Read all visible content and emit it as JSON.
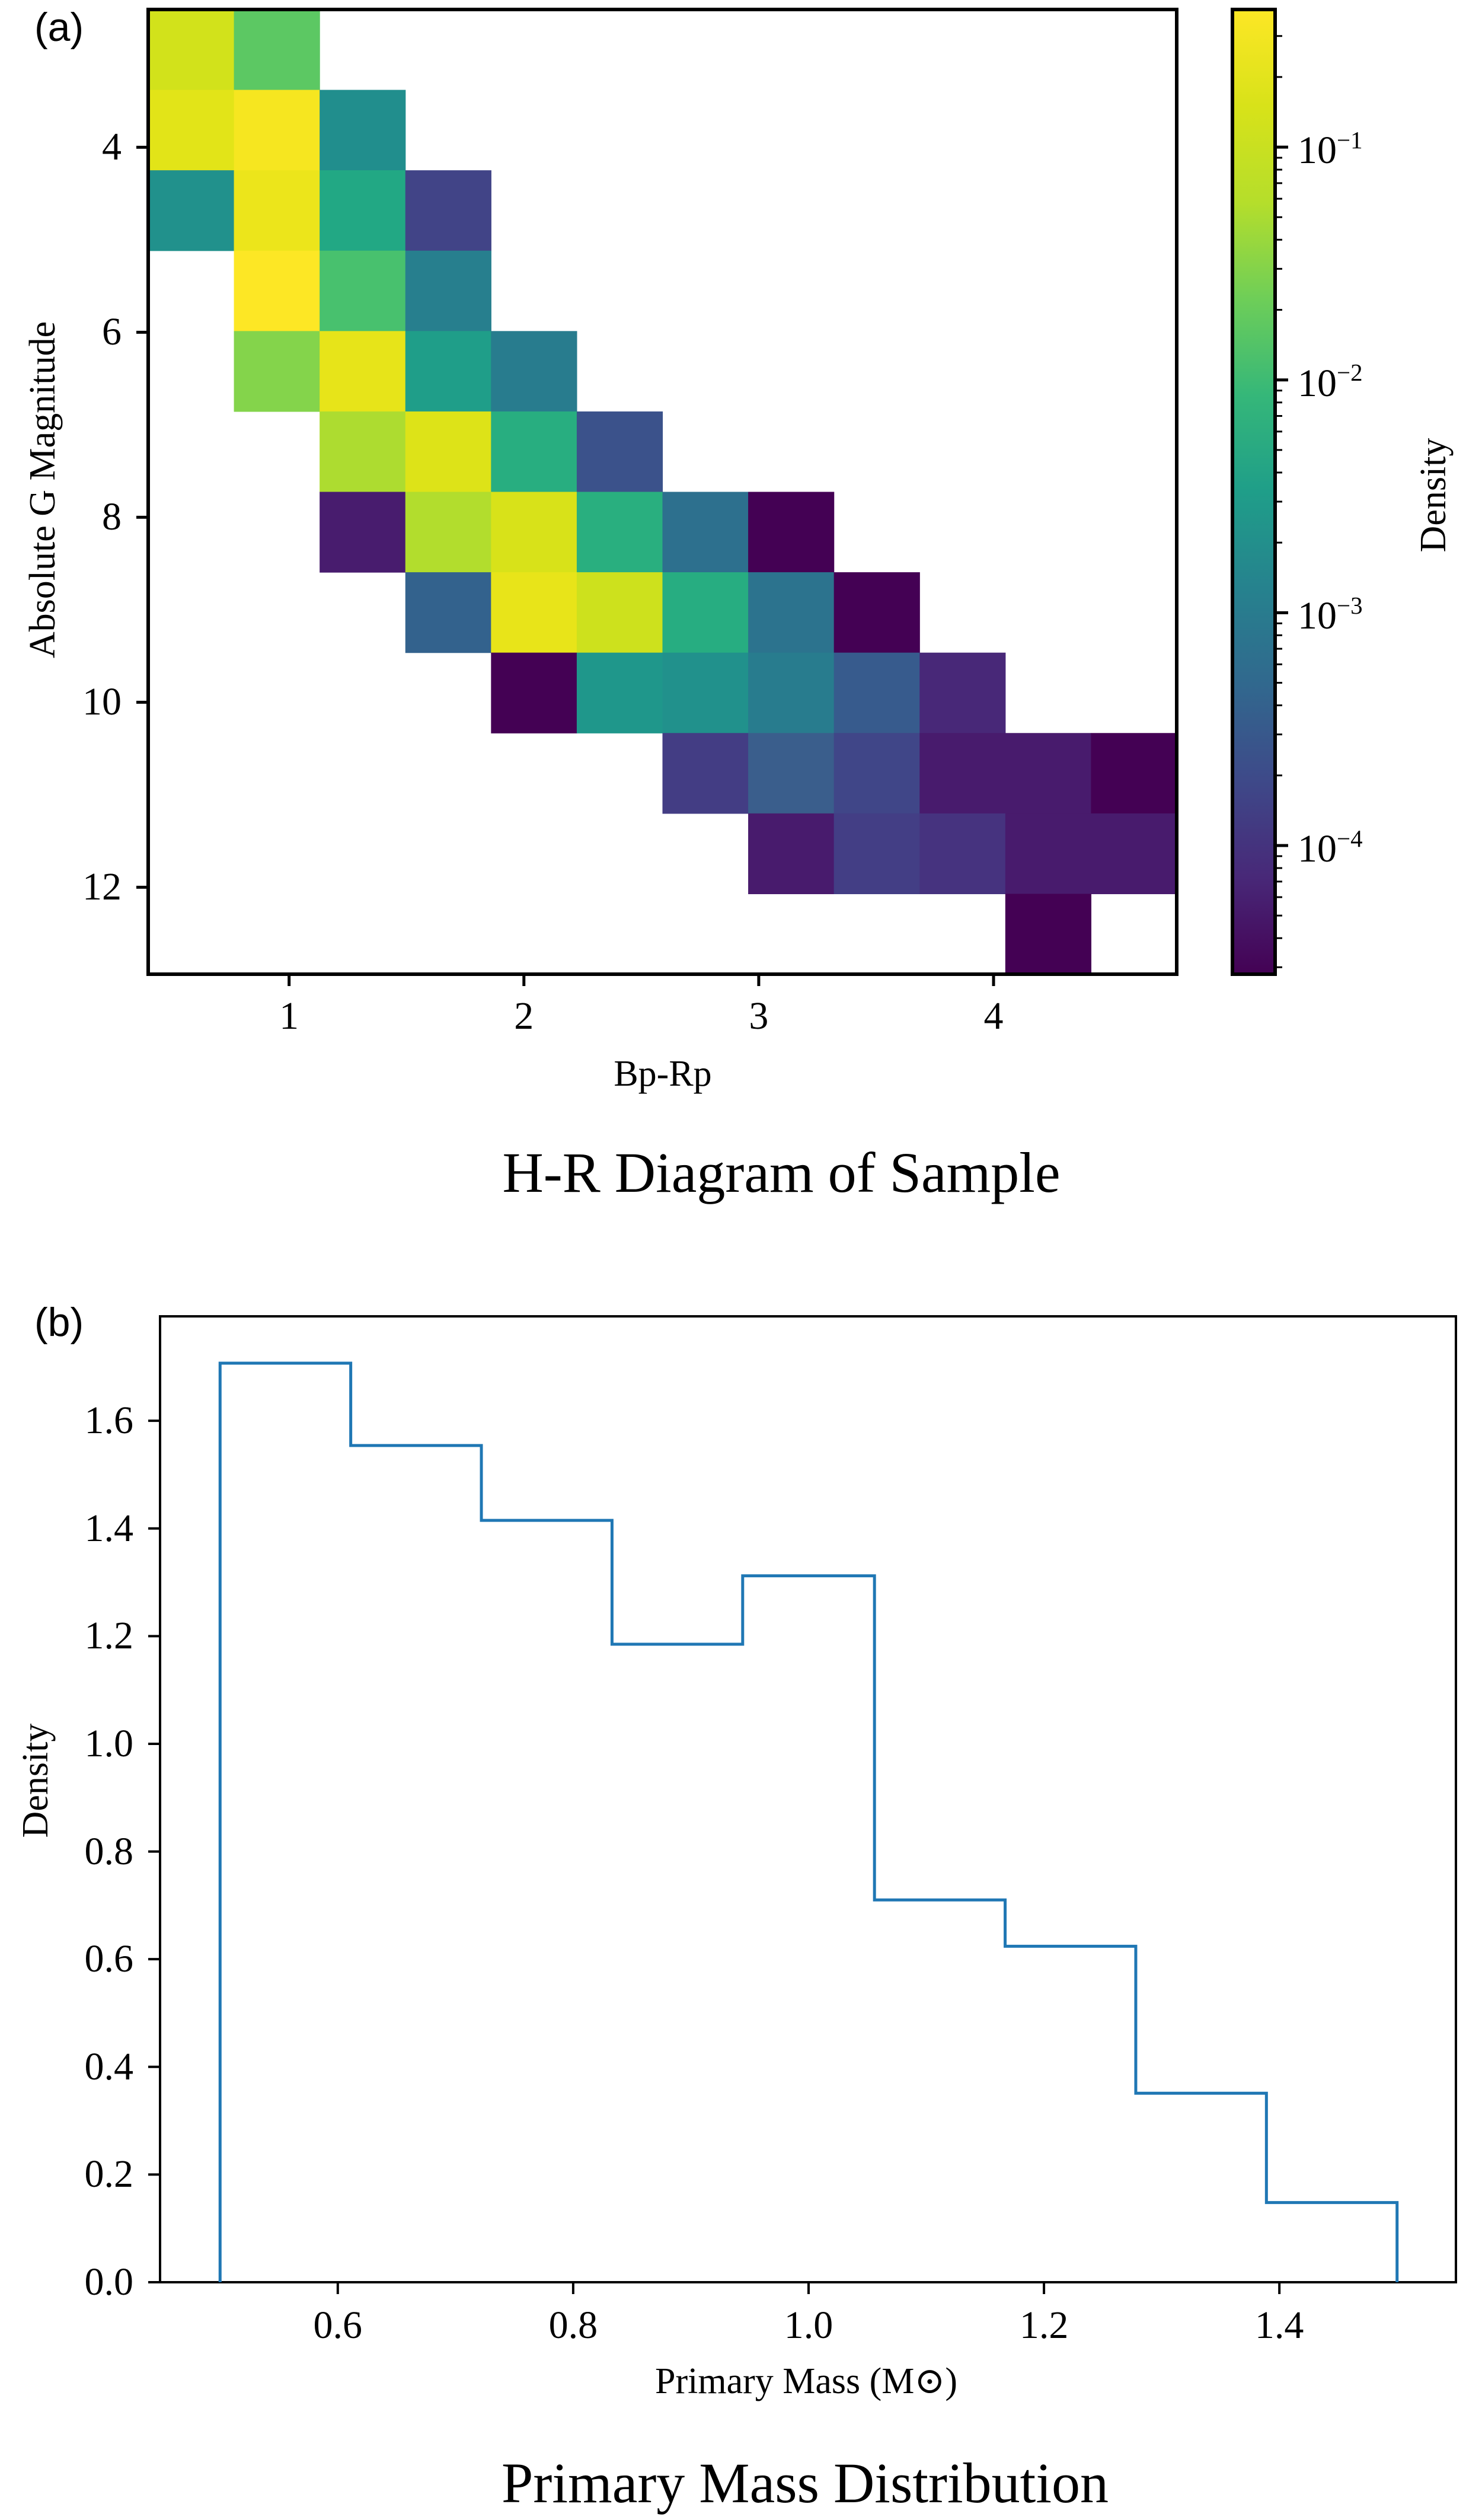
{
  "figure": {
    "panel_a": {
      "panel_label": "(a)",
      "caption": "H-R Diagram of Sample",
      "xlabel": "Bp-Rp",
      "ylabel": "Absolute G Magnitude",
      "x_ticks": [
        "1",
        "2",
        "3",
        "4"
      ],
      "y_ticks": [
        "4",
        "6",
        "8",
        "10",
        "12"
      ],
      "colorbar": {
        "label": "Density",
        "ticks": [
          {
            "base": "10",
            "exp": "−1"
          },
          {
            "base": "10",
            "exp": "−2"
          },
          {
            "base": "10",
            "exp": "−3"
          },
          {
            "base": "10",
            "exp": "−4"
          }
        ]
      }
    },
    "panel_b": {
      "panel_label": "(b)",
      "caption": "Primary Mass Distribution",
      "xlabel": "Primary Mass (M⊙)",
      "ylabel": "Density",
      "x_ticks": [
        "0.6",
        "0.8",
        "1.0",
        "1.2",
        "1.4"
      ],
      "y_ticks": [
        "0.0",
        "0.2",
        "0.4",
        "0.6",
        "0.8",
        "1.0",
        "1.2",
        "1.4",
        "1.6"
      ],
      "line_color": "#1f77b4"
    }
  },
  "chart_data": [
    {
      "type": "heatmap",
      "title": "H-R Diagram of Sample",
      "xlabel": "Bp-Rp",
      "ylabel": "Absolute G Magnitude",
      "xlim": [
        0.4,
        4.78
      ],
      "ylim": [
        12.94,
        2.51
      ],
      "y_inverted": true,
      "bins": {
        "nx": 12,
        "ny": 12,
        "x_edges_start": 0.4,
        "x_bin_width": 0.365,
        "y_edges_start": 2.51,
        "y_bin_height": 0.869
      },
      "colormap": "viridis",
      "color_scale": "log",
      "colorbar_label": "Density",
      "colorbar_range": [
        2.8e-05,
        0.39
      ],
      "colorbar_ticks": [
        "1e-1",
        "1e-2",
        "1e-3",
        "1e-4"
      ],
      "cells": [
        {
          "row": 0,
          "col": 0,
          "color": "#d2e21b",
          "density": 0.22
        },
        {
          "row": 0,
          "col": 1,
          "color": "#5cc863",
          "density": 0.035
        },
        {
          "row": 1,
          "col": 0,
          "color": "#e2e418",
          "density": 0.28
        },
        {
          "row": 1,
          "col": 1,
          "color": "#f6e620",
          "density": 0.35
        },
        {
          "row": 1,
          "col": 2,
          "color": "#218e8d",
          "density": 0.005
        },
        {
          "row": 2,
          "col": 0,
          "color": "#21918c",
          "density": 0.006
        },
        {
          "row": 2,
          "col": 1,
          "color": "#ece51b",
          "density": 0.3
        },
        {
          "row": 2,
          "col": 2,
          "color": "#22a884",
          "density": 0.015
        },
        {
          "row": 2,
          "col": 3,
          "color": "#414487",
          "density": 0.0003
        },
        {
          "row": 3,
          "col": 1,
          "color": "#fde725",
          "density": 0.38
        },
        {
          "row": 3,
          "col": 2,
          "color": "#48c16e",
          "density": 0.03
        },
        {
          "row": 3,
          "col": 3,
          "color": "#277f8e",
          "density": 0.0025
        },
        {
          "row": 4,
          "col": 1,
          "color": "#84d44b",
          "density": 0.07
        },
        {
          "row": 4,
          "col": 2,
          "color": "#e7e419",
          "density": 0.29
        },
        {
          "row": 4,
          "col": 3,
          "color": "#1f9e89",
          "density": 0.009
        },
        {
          "row": 4,
          "col": 4,
          "color": "#287c8e",
          "density": 0.002
        },
        {
          "row": 5,
          "col": 2,
          "color": "#addc30",
          "density": 0.13
        },
        {
          "row": 5,
          "col": 3,
          "color": "#dde318",
          "density": 0.25
        },
        {
          "row": 5,
          "col": 4,
          "color": "#28ae80",
          "density": 0.018
        },
        {
          "row": 5,
          "col": 5,
          "color": "#3b528b",
          "density": 0.0007
        },
        {
          "row": 6,
          "col": 2,
          "color": "#481c6e",
          "density": 6e-05
        },
        {
          "row": 6,
          "col": 3,
          "color": "#b2dd2d",
          "density": 0.14
        },
        {
          "row": 6,
          "col": 4,
          "color": "#d8e219",
          "density": 0.24
        },
        {
          "row": 6,
          "col": 5,
          "color": "#29af7f",
          "density": 0.018
        },
        {
          "row": 6,
          "col": 6,
          "color": "#2d708e",
          "density": 0.0015
        },
        {
          "row": 6,
          "col": 7,
          "color": "#440154",
          "density": 3e-05
        },
        {
          "row": 7,
          "col": 3,
          "color": "#33628d",
          "density": 0.001
        },
        {
          "row": 7,
          "col": 4,
          "color": "#e8e419",
          "density": 0.29
        },
        {
          "row": 7,
          "col": 5,
          "color": "#cde11d",
          "density": 0.2
        },
        {
          "row": 7,
          "col": 6,
          "color": "#27ad81",
          "density": 0.017
        },
        {
          "row": 7,
          "col": 7,
          "color": "#2c738e",
          "density": 0.0017
        },
        {
          "row": 7,
          "col": 8,
          "color": "#440154",
          "density": 3e-05
        },
        {
          "row": 8,
          "col": 4,
          "color": "#440154",
          "density": 3e-05
        },
        {
          "row": 8,
          "col": 5,
          "color": "#1f978b",
          "density": 0.007
        },
        {
          "row": 8,
          "col": 6,
          "color": "#21918c",
          "density": 0.0055
        },
        {
          "row": 8,
          "col": 7,
          "color": "#287c8e",
          "density": 0.002
        },
        {
          "row": 8,
          "col": 8,
          "color": "#375b8d",
          "density": 0.0008
        },
        {
          "row": 8,
          "col": 9,
          "color": "#482878",
          "density": 0.0001
        },
        {
          "row": 9,
          "col": 6,
          "color": "#433d84",
          "density": 0.00022
        },
        {
          "row": 9,
          "col": 7,
          "color": "#3a5e8c",
          "density": 0.0009
        },
        {
          "row": 9,
          "col": 8,
          "color": "#404688",
          "density": 0.0003
        },
        {
          "row": 9,
          "col": 9,
          "color": "#481b6d",
          "density": 6e-05
        },
        {
          "row": 9,
          "col": 10,
          "color": "#481b6d",
          "density": 6e-05
        },
        {
          "row": 9,
          "col": 11,
          "color": "#440154",
          "density": 3e-05
        },
        {
          "row": 10,
          "col": 7,
          "color": "#481b6d",
          "density": 6e-05
        },
        {
          "row": 10,
          "col": 8,
          "color": "#433e85",
          "density": 0.00022
        },
        {
          "row": 10,
          "col": 9,
          "color": "#46337f",
          "density": 0.00015
        },
        {
          "row": 10,
          "col": 10,
          "color": "#481b6d",
          "density": 6e-05
        },
        {
          "row": 10,
          "col": 11,
          "color": "#481b6d",
          "density": 6e-05
        },
        {
          "row": 11,
          "col": 10,
          "color": "#440154",
          "density": 3e-05
        }
      ]
    },
    {
      "type": "bar",
      "histtype": "step",
      "title": "Primary Mass Distribution",
      "xlabel": "Primary Mass (M⊙)",
      "ylabel": "Density",
      "xlim": [
        0.449,
        1.55
      ],
      "ylim": [
        0,
        1.794
      ],
      "bin_edges": [
        0.5,
        0.611,
        0.722,
        0.833,
        0.944,
        1.056,
        1.167,
        1.278,
        1.389,
        1.5
      ],
      "values": [
        1.707,
        1.554,
        1.415,
        1.185,
        1.312,
        0.71,
        0.624,
        0.351,
        0.148
      ],
      "color": "#1f77b4",
      "grid": false
    }
  ]
}
